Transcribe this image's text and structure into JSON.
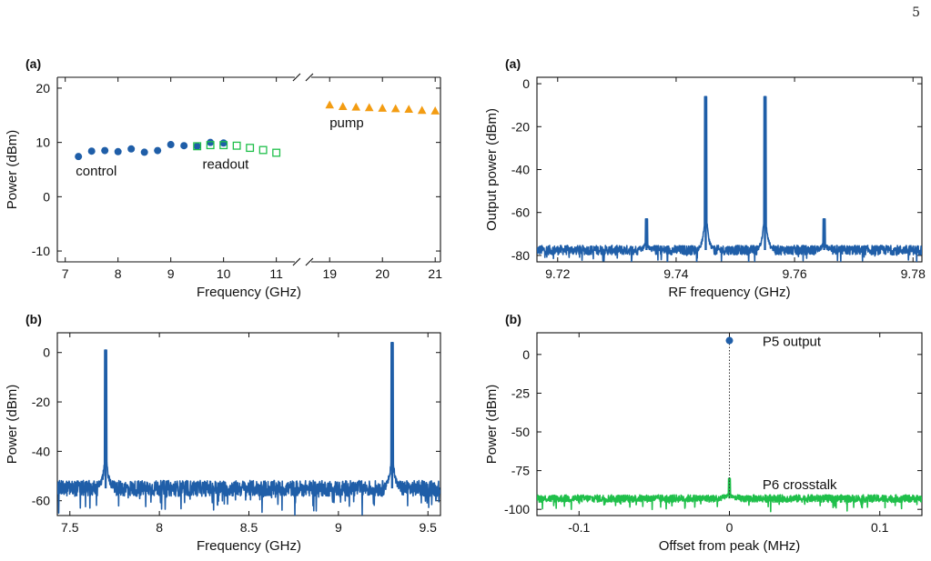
{
  "page_number": "5",
  "colors": {
    "blue": "#1f5ea8",
    "green": "#1fbf4a",
    "orange": "#f39c12",
    "axis": "#111111"
  },
  "chart_data": [
    {
      "id": "p1",
      "type": "scatter",
      "panel_label": "(a)",
      "xlabel": "Frequency (GHz)",
      "ylabel": "Power (dBm)",
      "xlim": [
        6.85,
        21.1
      ],
      "ylim": [
        -12,
        22
      ],
      "broken_x_axis": true,
      "x_segments": [
        [
          6.85,
          11.35
        ],
        [
          18.65,
          21.1
        ]
      ],
      "xticks": [
        7,
        8,
        9,
        10,
        11,
        19,
        20,
        21
      ],
      "yticks": [
        -10,
        0,
        10,
        20
      ],
      "annotations": [
        {
          "text": "control",
          "x": 7.2,
          "y": 3.9,
          "color": "#1f5ea8"
        },
        {
          "text": "readout",
          "x": 9.6,
          "y": 5.2,
          "color": "#1fbf4a"
        },
        {
          "text": "pump",
          "x": 19.0,
          "y": 12.8,
          "color": "#f39c12"
        }
      ],
      "series": [
        {
          "marker": "circle",
          "color": "#1f5ea8",
          "x": [
            7.25,
            7.5,
            7.75,
            8.0,
            8.25,
            8.5,
            8.75,
            9.0,
            9.25,
            9.5,
            9.75,
            10.0
          ],
          "y": [
            7.4,
            8.4,
            8.5,
            8.3,
            8.8,
            8.2,
            8.5,
            9.6,
            9.4,
            9.3,
            10.0,
            9.9
          ]
        },
        {
          "marker": "open-square",
          "color": "#1fbf4a",
          "x": [
            9.5,
            9.75,
            10.0,
            10.25,
            10.5,
            10.75,
            11.0
          ],
          "y": [
            9.3,
            9.5,
            9.5,
            9.4,
            9.0,
            8.6,
            8.1
          ]
        },
        {
          "marker": "triangle",
          "color": "#f39c12",
          "x": [
            19.0,
            19.25,
            19.5,
            19.75,
            20.0,
            20.25,
            20.5,
            20.75,
            21.0
          ],
          "y": [
            16.9,
            16.6,
            16.5,
            16.4,
            16.3,
            16.2,
            16.1,
            15.9,
            15.8
          ]
        }
      ]
    },
    {
      "id": "p2",
      "type": "line",
      "panel_label": "(a)",
      "xlabel": "RF frequency (GHz)",
      "ylabel": "Output power (dBm)",
      "xlim": [
        9.7165,
        9.7815
      ],
      "ylim": [
        -83,
        3
      ],
      "xticks": [
        9.72,
        9.74,
        9.76,
        9.78
      ],
      "yticks": [
        -80,
        -60,
        -40,
        -20,
        0
      ],
      "noise_floor": -77.5,
      "noise_amplitude": 2.2,
      "peaks": [
        {
          "x": 9.735,
          "y": -63
        },
        {
          "x": 9.745,
          "y": -6
        },
        {
          "x": 9.755,
          "y": -6
        },
        {
          "x": 9.765,
          "y": -63
        }
      ],
      "series": [
        {
          "color": "#1f5ea8"
        }
      ]
    },
    {
      "id": "p3",
      "type": "line",
      "panel_label": "(b)",
      "xlabel": "Frequency (GHz)",
      "ylabel": "Power (dBm)",
      "xlim": [
        7.43,
        9.57
      ],
      "ylim": [
        -66,
        8
      ],
      "xticks": [
        7.5,
        8,
        8.5,
        9,
        9.5
      ],
      "yticks": [
        -60,
        -40,
        -20,
        0
      ],
      "noise_floor": -55,
      "noise_amplitude": 3.2,
      "peaks": [
        {
          "x": 7.7,
          "y": 1
        },
        {
          "x": 9.3,
          "y": 4
        }
      ],
      "series": [
        {
          "color": "#1f5ea8"
        }
      ]
    },
    {
      "id": "p4",
      "type": "line",
      "panel_label": "(b)",
      "xlabel": "Offset from peak (MHz)",
      "ylabel": "Power (dBm)",
      "xlim": [
        -0.128,
        0.128
      ],
      "ylim": [
        -104,
        14
      ],
      "xticks": [
        -0.1,
        0,
        0.1
      ],
      "yticks": [
        -100,
        -75,
        -50,
        -25,
        0
      ],
      "annotations": [
        {
          "text": "P5 output",
          "x": 0.022,
          "y": 5.5,
          "color": "#1f5ea8"
        },
        {
          "text": "P6 crosstalk",
          "x": 0.022,
          "y": -87,
          "color": "#1fbf4a"
        }
      ],
      "marker_point": {
        "x": 0,
        "y": 9,
        "color": "#1f5ea8"
      },
      "noise_floor": -93,
      "noise_amplitude": 2.4,
      "peaks": [
        {
          "x": 0,
          "y": -80
        }
      ],
      "series": [
        {
          "name": "P6 crosstalk",
          "color": "#1fbf4a"
        }
      ]
    }
  ]
}
